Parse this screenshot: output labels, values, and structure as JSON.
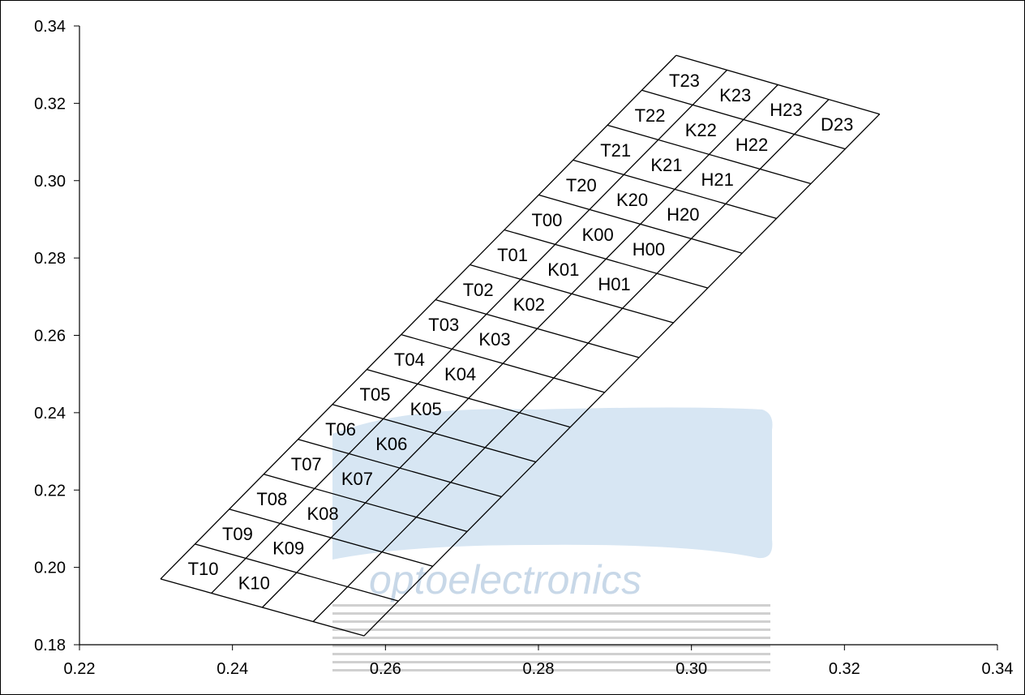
{
  "chart_data": {
    "type": "diagram",
    "title": "",
    "xlabel": "",
    "ylabel": "",
    "xlim": [
      0.22,
      0.34
    ],
    "ylim": [
      0.18,
      0.34
    ],
    "x_ticks": [
      "0.22",
      "0.24",
      "0.26",
      "0.28",
      "0.30",
      "0.32",
      "0.34"
    ],
    "y_ticks": [
      "0.18",
      "0.20",
      "0.22",
      "0.24",
      "0.26",
      "0.28",
      "0.30",
      "0.32",
      "0.34"
    ],
    "grid": false,
    "bin_grid": {
      "corners": {
        "bottom_left": [
          0.2306,
          0.197
        ],
        "bottom_right": [
          0.2572,
          0.1823
        ],
        "top_left": [
          0.298,
          0.3324
        ],
        "top_right": [
          0.3246,
          0.3172
        ]
      },
      "row_names": [
        "23",
        "22",
        "21",
        "20",
        "00",
        "01",
        "02",
        "03",
        "04",
        "05",
        "06",
        "07",
        "08",
        "09",
        "10"
      ],
      "column_prefixes": [
        "T",
        "K",
        "H",
        "D"
      ]
    },
    "bins": [
      {
        "label": "T23",
        "col": 0,
        "row": 0
      },
      {
        "label": "K23",
        "col": 1,
        "row": 0
      },
      {
        "label": "H23",
        "col": 2,
        "row": 0
      },
      {
        "label": "D23",
        "col": 3,
        "row": 0
      },
      {
        "label": "T22",
        "col": 0,
        "row": 1
      },
      {
        "label": "K22",
        "col": 1,
        "row": 1
      },
      {
        "label": "H22",
        "col": 2,
        "row": 1
      },
      {
        "label": "T21",
        "col": 0,
        "row": 2
      },
      {
        "label": "K21",
        "col": 1,
        "row": 2
      },
      {
        "label": "H21",
        "col": 2,
        "row": 2
      },
      {
        "label": "T20",
        "col": 0,
        "row": 3
      },
      {
        "label": "K20",
        "col": 1,
        "row": 3
      },
      {
        "label": "H20",
        "col": 2,
        "row": 3
      },
      {
        "label": "T00",
        "col": 0,
        "row": 4
      },
      {
        "label": "K00",
        "col": 1,
        "row": 4
      },
      {
        "label": "H00",
        "col": 2,
        "row": 4
      },
      {
        "label": "T01",
        "col": 0,
        "row": 5
      },
      {
        "label": "K01",
        "col": 1,
        "row": 5
      },
      {
        "label": "H01",
        "col": 2,
        "row": 5
      },
      {
        "label": "T02",
        "col": 0,
        "row": 6
      },
      {
        "label": "K02",
        "col": 1,
        "row": 6
      },
      {
        "label": "T03",
        "col": 0,
        "row": 7
      },
      {
        "label": "K03",
        "col": 1,
        "row": 7
      },
      {
        "label": "T04",
        "col": 0,
        "row": 8
      },
      {
        "label": "K04",
        "col": 1,
        "row": 8
      },
      {
        "label": "T05",
        "col": 0,
        "row": 9
      },
      {
        "label": "K05",
        "col": 1,
        "row": 9
      },
      {
        "label": "T06",
        "col": 0,
        "row": 10
      },
      {
        "label": "K06",
        "col": 1,
        "row": 10
      },
      {
        "label": "T07",
        "col": 0,
        "row": 11
      },
      {
        "label": "K07",
        "col": 1,
        "row": 11
      },
      {
        "label": "T08",
        "col": 0,
        "row": 12
      },
      {
        "label": "K08",
        "col": 1,
        "row": 12
      },
      {
        "label": "T09",
        "col": 0,
        "row": 13
      },
      {
        "label": "K09",
        "col": 1,
        "row": 13
      },
      {
        "label": "T10",
        "col": 0,
        "row": 14
      },
      {
        "label": "K10",
        "col": 1,
        "row": 14
      }
    ]
  },
  "watermark": {
    "text": "optoelectronics",
    "color": "#c8dcec"
  }
}
